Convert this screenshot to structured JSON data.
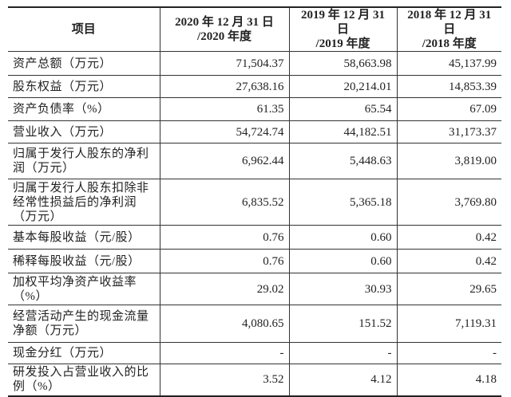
{
  "table": {
    "headers": [
      "项目",
      "2020年12月31日\n/2020年度",
      "2019年12月31日\n/2019年度",
      "2018年12月31日\n/2018年度"
    ],
    "header_lines": [
      [
        "项目"
      ],
      [
        "2020 年 12 月 31 日",
        "/2020 年度"
      ],
      [
        "2019 年 12 月 31 日",
        "/2019 年度"
      ],
      [
        "2018 年 12 月 31 日",
        "/2018 年度"
      ]
    ],
    "rows": [
      {
        "label": "资产总额（万元）",
        "values": [
          "71,504.37",
          "58,663.98",
          "45,137.99"
        ]
      },
      {
        "label": "股东权益（万元）",
        "values": [
          "27,638.16",
          "20,214.01",
          "14,853.39"
        ]
      },
      {
        "label": "资产负债率（%）",
        "values": [
          "61.35",
          "65.54",
          "67.09"
        ]
      },
      {
        "label": "营业收入（万元）",
        "values": [
          "54,724.74",
          "44,182.51",
          "31,173.37"
        ]
      },
      {
        "label": "归属于发行人股东的净利润（万元）",
        "values": [
          "6,962.44",
          "5,448.63",
          "3,819.00"
        ]
      },
      {
        "label": "归属于发行人股东扣除非经常性损益后的净利润（万元）",
        "values": [
          "6,835.52",
          "5,365.18",
          "3,769.80"
        ]
      },
      {
        "label": "基本每股收益（元/股）",
        "values": [
          "0.76",
          "0.60",
          "0.42"
        ]
      },
      {
        "label": "稀释每股收益（元/股）",
        "values": [
          "0.76",
          "0.60",
          "0.42"
        ]
      },
      {
        "label": "加权平均净资产收益率（%）",
        "values": [
          "29.02",
          "30.93",
          "29.65"
        ]
      },
      {
        "label": "经营活动产生的现金流量净额（万元）",
        "values": [
          "4,080.65",
          "151.52",
          "7,119.31"
        ]
      },
      {
        "label": "现金分红（万元）",
        "values": [
          "-",
          "-",
          "-"
        ]
      },
      {
        "label": "研发投入占营业收入的比例（%）",
        "values": [
          "3.52",
          "4.12",
          "4.18"
        ]
      }
    ]
  }
}
